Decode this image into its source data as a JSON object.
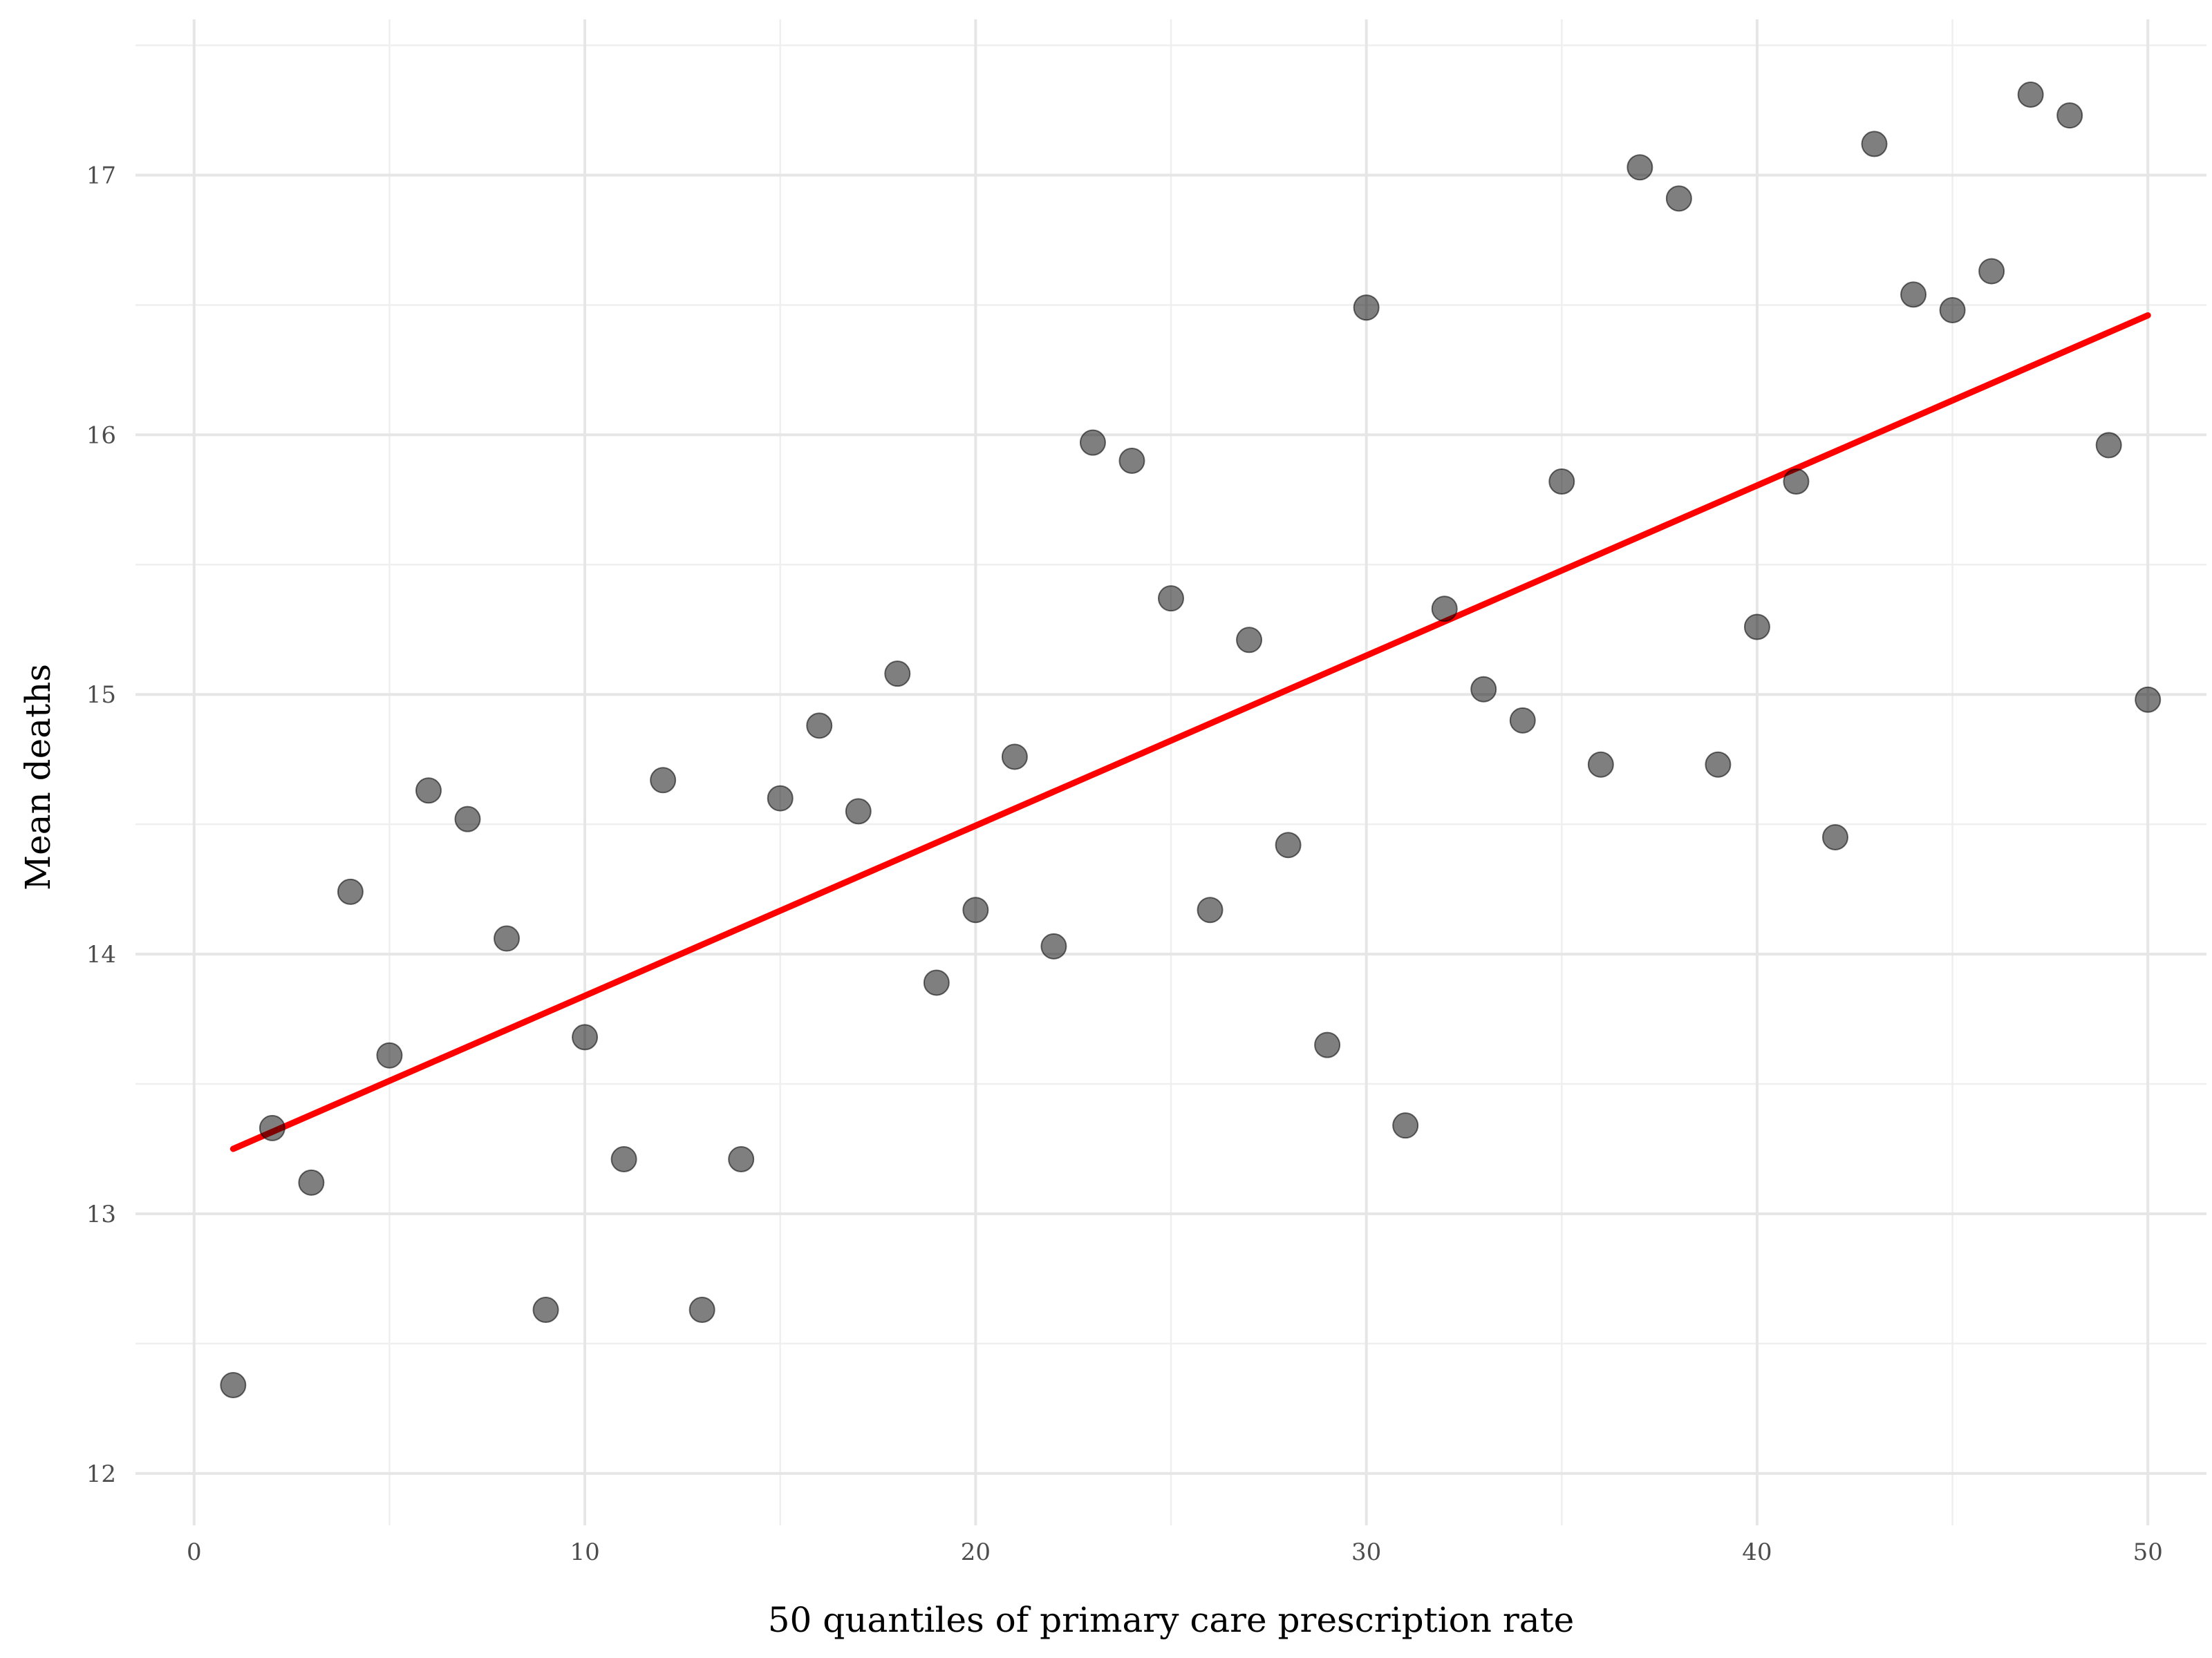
{
  "chart_data": {
    "type": "scatter",
    "title": "",
    "xlabel": "50 quantiles of primary care prescription rate",
    "ylabel": "Mean deaths",
    "xlim": [
      -1.5,
      51.5
    ],
    "ylim": [
      11.8,
      17.6
    ],
    "x_ticks": [
      0,
      10,
      20,
      30,
      40,
      50
    ],
    "y_ticks": [
      12,
      13,
      14,
      15,
      16,
      17
    ],
    "x_minor_ticks": [
      5,
      15,
      25,
      35,
      45
    ],
    "y_minor_ticks": [
      12.5,
      13.5,
      14.5,
      15.5,
      16.5,
      17.5
    ],
    "grid": true,
    "point_color": "#000000",
    "trend_color": "#ff0000",
    "points": [
      {
        "x": 1,
        "y": 12.34
      },
      {
        "x": 2,
        "y": 13.33
      },
      {
        "x": 3,
        "y": 13.12
      },
      {
        "x": 4,
        "y": 14.24
      },
      {
        "x": 5,
        "y": 13.61
      },
      {
        "x": 6,
        "y": 14.63
      },
      {
        "x": 7,
        "y": 14.52
      },
      {
        "x": 8,
        "y": 14.06
      },
      {
        "x": 9,
        "y": 12.63
      },
      {
        "x": 10,
        "y": 13.68
      },
      {
        "x": 11,
        "y": 13.21
      },
      {
        "x": 12,
        "y": 14.67
      },
      {
        "x": 13,
        "y": 12.63
      },
      {
        "x": 14,
        "y": 13.21
      },
      {
        "x": 15,
        "y": 14.6
      },
      {
        "x": 16,
        "y": 14.88
      },
      {
        "x": 17,
        "y": 14.55
      },
      {
        "x": 18,
        "y": 15.08
      },
      {
        "x": 19,
        "y": 13.89
      },
      {
        "x": 20,
        "y": 14.17
      },
      {
        "x": 21,
        "y": 14.76
      },
      {
        "x": 22,
        "y": 14.03
      },
      {
        "x": 23,
        "y": 15.97
      },
      {
        "x": 24,
        "y": 15.9
      },
      {
        "x": 25,
        "y": 15.37
      },
      {
        "x": 26,
        "y": 14.17
      },
      {
        "x": 27,
        "y": 15.21
      },
      {
        "x": 28,
        "y": 14.42
      },
      {
        "x": 29,
        "y": 13.65
      },
      {
        "x": 30,
        "y": 16.49
      },
      {
        "x": 31,
        "y": 13.34
      },
      {
        "x": 32,
        "y": 15.33
      },
      {
        "x": 33,
        "y": 15.02
      },
      {
        "x": 34,
        "y": 14.9
      },
      {
        "x": 35,
        "y": 15.82
      },
      {
        "x": 36,
        "y": 14.73
      },
      {
        "x": 37,
        "y": 17.03
      },
      {
        "x": 38,
        "y": 16.91
      },
      {
        "x": 39,
        "y": 14.73
      },
      {
        "x": 40,
        "y": 15.26
      },
      {
        "x": 41,
        "y": 15.82
      },
      {
        "x": 42,
        "y": 14.45
      },
      {
        "x": 43,
        "y": 17.12
      },
      {
        "x": 44,
        "y": 16.54
      },
      {
        "x": 45,
        "y": 16.48
      },
      {
        "x": 46,
        "y": 16.63
      },
      {
        "x": 47,
        "y": 17.31
      },
      {
        "x": 48,
        "y": 17.23
      },
      {
        "x": 49,
        "y": 15.96
      },
      {
        "x": 50,
        "y": 14.98
      }
    ],
    "trend_line": {
      "x": [
        1,
        50
      ],
      "y": [
        13.25,
        16.46
      ]
    }
  }
}
